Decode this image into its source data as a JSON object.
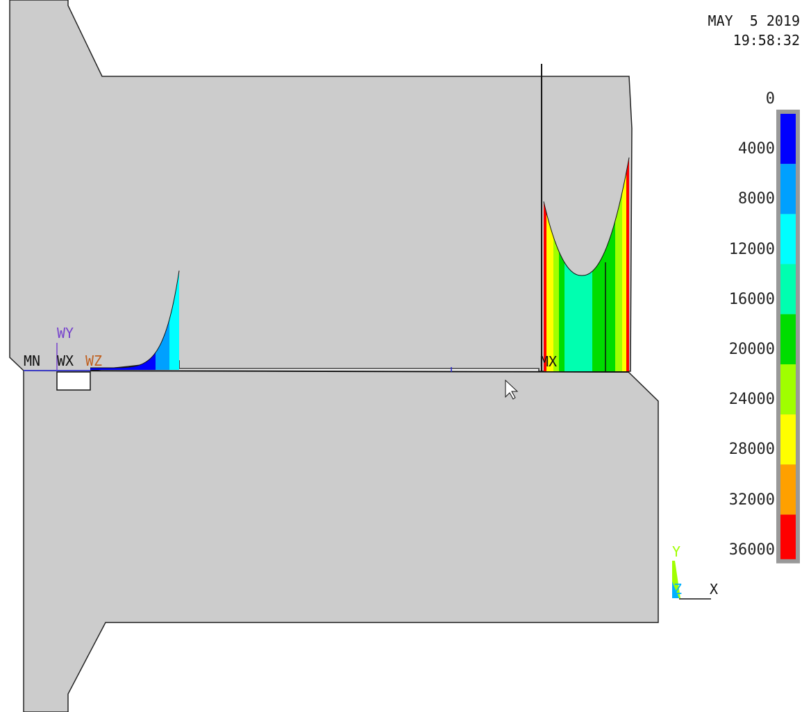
{
  "header": {
    "date": "MAY  5 2019",
    "time": "19:58:32"
  },
  "markers": {
    "min_label": "MN",
    "max_label": "MX",
    "wp_x": "WX",
    "wp_y": "WY",
    "wp_z": "WZ"
  },
  "triad": {
    "x": "X",
    "y": "Y",
    "z": "Z"
  },
  "legend": {
    "levels": [
      "0",
      "4000",
      "8000",
      "12000",
      "16000",
      "20000",
      "24000",
      "28000",
      "32000",
      "36000"
    ],
    "colors": [
      "#0000ff",
      "#00a0ff",
      "#00ffff",
      "#00ffb0",
      "#00dd00",
      "#a0ff00",
      "#ffff00",
      "#ffa000",
      "#ff0000"
    ]
  },
  "colors": {
    "part_fill": "#cccccc",
    "part_edge": "#222222",
    "background": "#ffffff",
    "workplane": "#7744cc",
    "cursor": "#ffffff"
  }
}
